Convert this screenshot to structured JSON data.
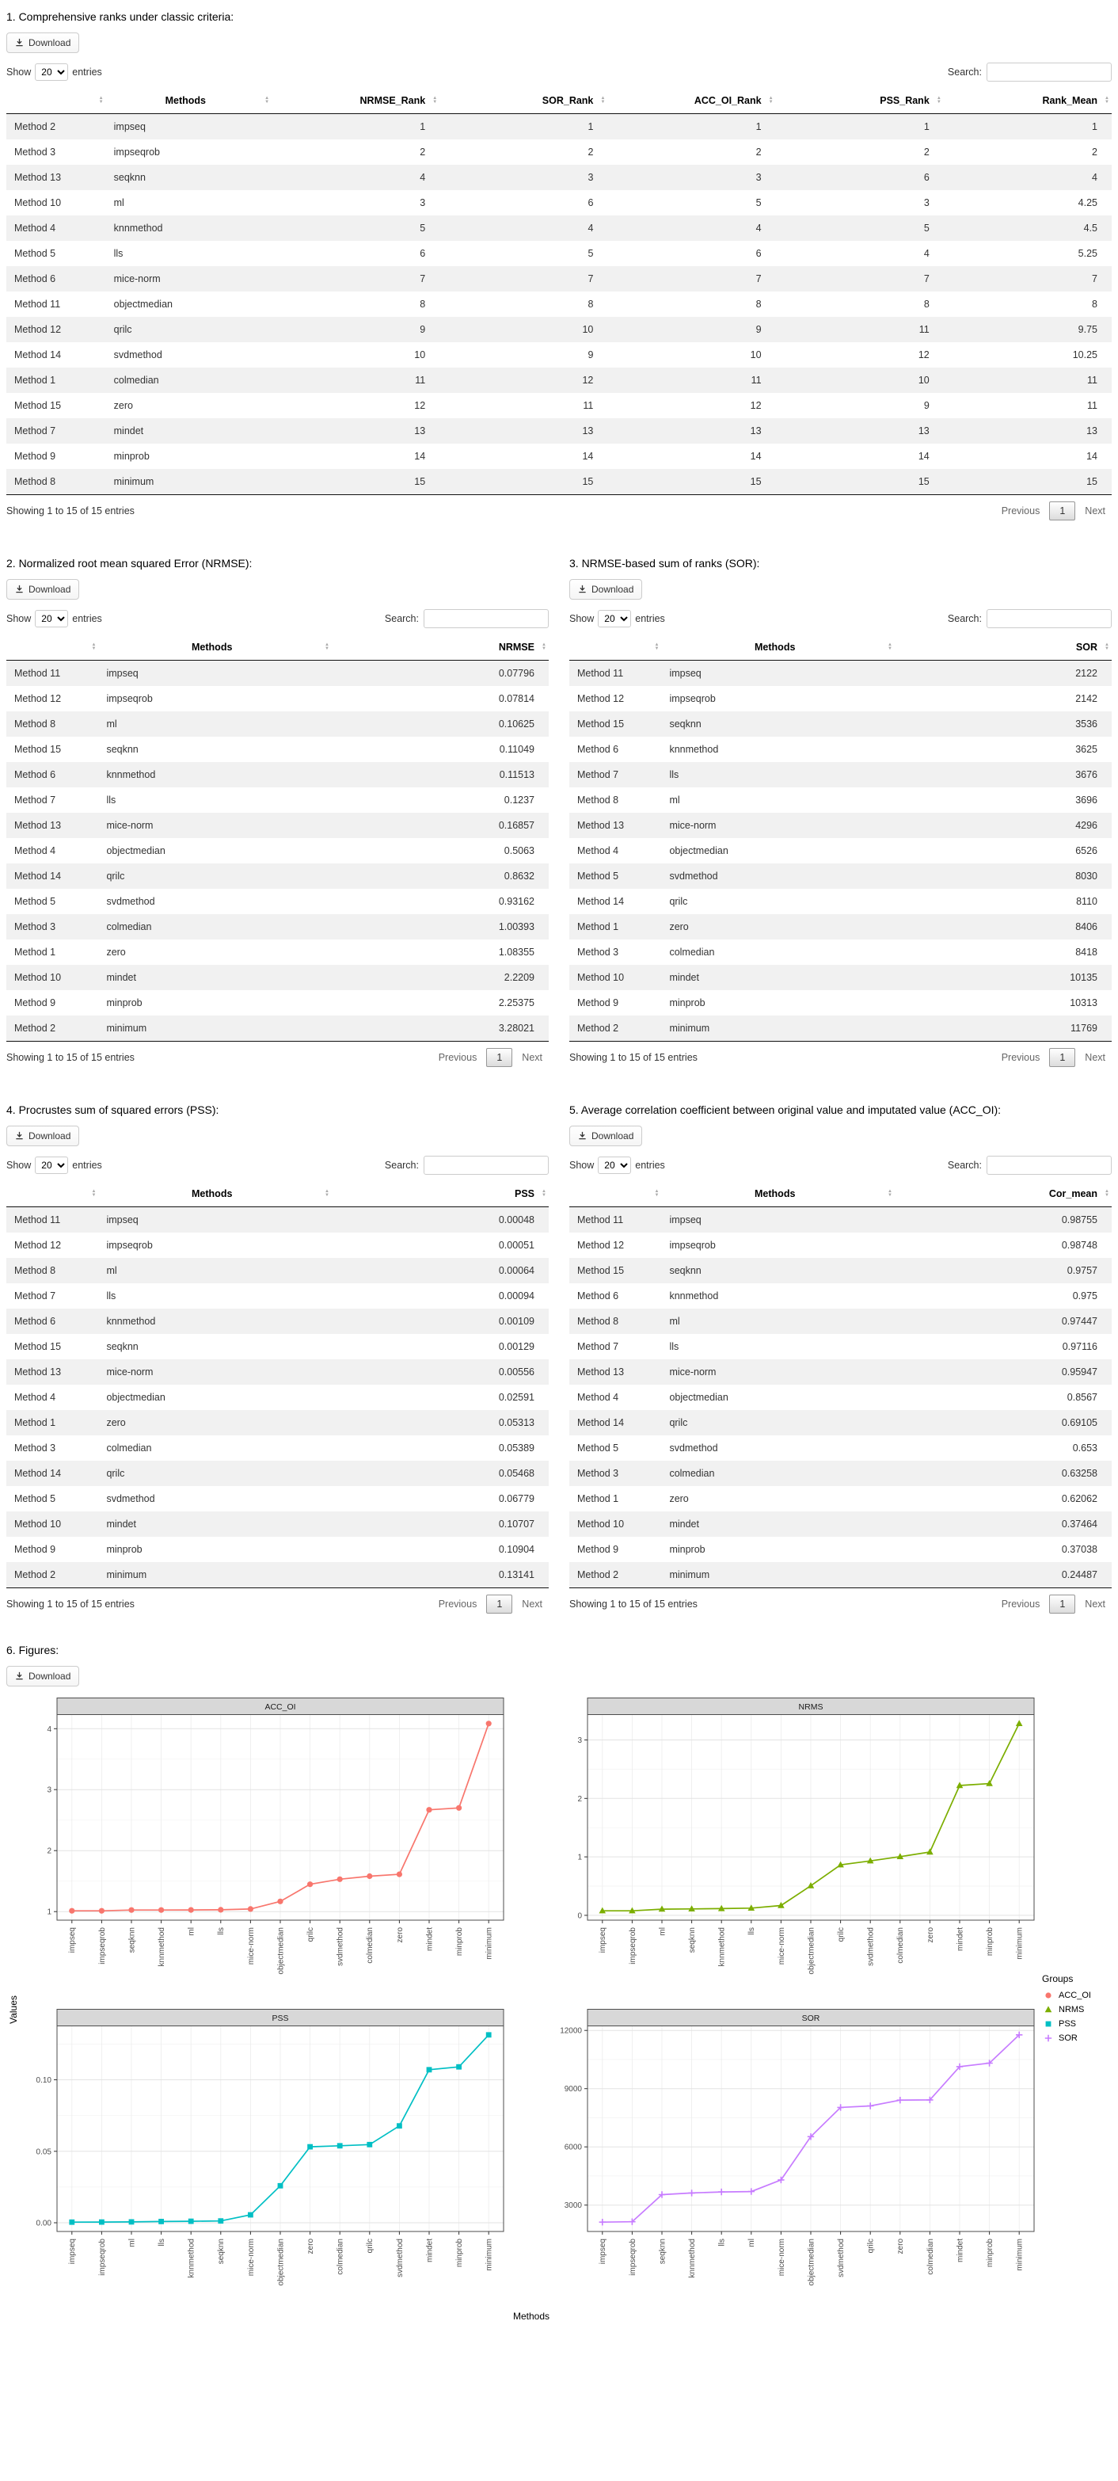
{
  "ui": {
    "download": "Download",
    "show": "Show",
    "page_size": "20",
    "entries": "entries",
    "search": "Search:",
    "info": "Showing 1 to 15 of 15 entries",
    "previous": "Previous",
    "page": "1",
    "next": "Next"
  },
  "tables": {
    "t1": {
      "title": "1. Comprehensive ranks under classic criteria:",
      "headers": [
        "",
        "Methods",
        "NRMSE_Rank",
        "SOR_Rank",
        "ACC_OI_Rank",
        "PSS_Rank",
        "Rank_Mean"
      ],
      "rows": [
        [
          "Method 2",
          "impseq",
          "1",
          "1",
          "1",
          "1",
          "1"
        ],
        [
          "Method 3",
          "impseqrob",
          "2",
          "2",
          "2",
          "2",
          "2"
        ],
        [
          "Method 13",
          "seqknn",
          "4",
          "3",
          "3",
          "6",
          "4"
        ],
        [
          "Method 10",
          "ml",
          "3",
          "6",
          "5",
          "3",
          "4.25"
        ],
        [
          "Method 4",
          "knnmethod",
          "5",
          "4",
          "4",
          "5",
          "4.5"
        ],
        [
          "Method 5",
          "lls",
          "6",
          "5",
          "6",
          "4",
          "5.25"
        ],
        [
          "Method 6",
          "mice-norm",
          "7",
          "7",
          "7",
          "7",
          "7"
        ],
        [
          "Method 11",
          "objectmedian",
          "8",
          "8",
          "8",
          "8",
          "8"
        ],
        [
          "Method 12",
          "qrilc",
          "9",
          "10",
          "9",
          "11",
          "9.75"
        ],
        [
          "Method 14",
          "svdmethod",
          "10",
          "9",
          "10",
          "12",
          "10.25"
        ],
        [
          "Method 1",
          "colmedian",
          "11",
          "12",
          "11",
          "10",
          "11"
        ],
        [
          "Method 15",
          "zero",
          "12",
          "11",
          "12",
          "9",
          "11"
        ],
        [
          "Method 7",
          "mindet",
          "13",
          "13",
          "13",
          "13",
          "13"
        ],
        [
          "Method 9",
          "minprob",
          "14",
          "14",
          "14",
          "14",
          "14"
        ],
        [
          "Method 8",
          "minimum",
          "15",
          "15",
          "15",
          "15",
          "15"
        ]
      ]
    },
    "t2": {
      "title": "2. Normalized root mean squared Error (NRMSE):",
      "headers": [
        "",
        "Methods",
        "NRMSE"
      ],
      "rows": [
        [
          "Method 11",
          "impseq",
          "0.07796"
        ],
        [
          "Method 12",
          "impseqrob",
          "0.07814"
        ],
        [
          "Method 8",
          "ml",
          "0.10625"
        ],
        [
          "Method 15",
          "seqknn",
          "0.11049"
        ],
        [
          "Method 6",
          "knnmethod",
          "0.11513"
        ],
        [
          "Method 7",
          "lls",
          "0.1237"
        ],
        [
          "Method 13",
          "mice-norm",
          "0.16857"
        ],
        [
          "Method 4",
          "objectmedian",
          "0.5063"
        ],
        [
          "Method 14",
          "qrilc",
          "0.8632"
        ],
        [
          "Method 5",
          "svdmethod",
          "0.93162"
        ],
        [
          "Method 3",
          "colmedian",
          "1.00393"
        ],
        [
          "Method 1",
          "zero",
          "1.08355"
        ],
        [
          "Method 10",
          "mindet",
          "2.2209"
        ],
        [
          "Method 9",
          "minprob",
          "2.25375"
        ],
        [
          "Method 2",
          "minimum",
          "3.28021"
        ]
      ]
    },
    "t3": {
      "title": "3. NRMSE-based sum of ranks (SOR):",
      "headers": [
        "",
        "Methods",
        "SOR"
      ],
      "rows": [
        [
          "Method 11",
          "impseq",
          "2122"
        ],
        [
          "Method 12",
          "impseqrob",
          "2142"
        ],
        [
          "Method 15",
          "seqknn",
          "3536"
        ],
        [
          "Method 6",
          "knnmethod",
          "3625"
        ],
        [
          "Method 7",
          "lls",
          "3676"
        ],
        [
          "Method 8",
          "ml",
          "3696"
        ],
        [
          "Method 13",
          "mice-norm",
          "4296"
        ],
        [
          "Method 4",
          "objectmedian",
          "6526"
        ],
        [
          "Method 5",
          "svdmethod",
          "8030"
        ],
        [
          "Method 14",
          "qrilc",
          "8110"
        ],
        [
          "Method 1",
          "zero",
          "8406"
        ],
        [
          "Method 3",
          "colmedian",
          "8418"
        ],
        [
          "Method 10",
          "mindet",
          "10135"
        ],
        [
          "Method 9",
          "minprob",
          "10313"
        ],
        [
          "Method 2",
          "minimum",
          "11769"
        ]
      ]
    },
    "t4": {
      "title": "4. Procrustes sum of squared errors (PSS):",
      "headers": [
        "",
        "Methods",
        "PSS"
      ],
      "rows": [
        [
          "Method 11",
          "impseq",
          "0.00048"
        ],
        [
          "Method 12",
          "impseqrob",
          "0.00051"
        ],
        [
          "Method 8",
          "ml",
          "0.00064"
        ],
        [
          "Method 7",
          "lls",
          "0.00094"
        ],
        [
          "Method 6",
          "knnmethod",
          "0.00109"
        ],
        [
          "Method 15",
          "seqknn",
          "0.00129"
        ],
        [
          "Method 13",
          "mice-norm",
          "0.00556"
        ],
        [
          "Method 4",
          "objectmedian",
          "0.02591"
        ],
        [
          "Method 1",
          "zero",
          "0.05313"
        ],
        [
          "Method 3",
          "colmedian",
          "0.05389"
        ],
        [
          "Method 14",
          "qrilc",
          "0.05468"
        ],
        [
          "Method 5",
          "svdmethod",
          "0.06779"
        ],
        [
          "Method 10",
          "mindet",
          "0.10707"
        ],
        [
          "Method 9",
          "minprob",
          "0.10904"
        ],
        [
          "Method 2",
          "minimum",
          "0.13141"
        ]
      ]
    },
    "t5": {
      "title": "5. Average correlation coefficient between original value and imputated value (ACC_OI):",
      "headers": [
        "",
        "Methods",
        "Cor_mean"
      ],
      "rows": [
        [
          "Method 11",
          "impseq",
          "0.98755"
        ],
        [
          "Method 12",
          "impseqrob",
          "0.98748"
        ],
        [
          "Method 15",
          "seqknn",
          "0.9757"
        ],
        [
          "Method 6",
          "knnmethod",
          "0.975"
        ],
        [
          "Method 8",
          "ml",
          "0.97447"
        ],
        [
          "Method 7",
          "lls",
          "0.97116"
        ],
        [
          "Method 13",
          "mice-norm",
          "0.95947"
        ],
        [
          "Method 4",
          "objectmedian",
          "0.8567"
        ],
        [
          "Method 14",
          "qrilc",
          "0.69105"
        ],
        [
          "Method 5",
          "svdmethod",
          "0.653"
        ],
        [
          "Method 3",
          "colmedian",
          "0.63258"
        ],
        [
          "Method 1",
          "zero",
          "0.62062"
        ],
        [
          "Method 10",
          "mindet",
          "0.37464"
        ],
        [
          "Method 9",
          "minprob",
          "0.37038"
        ],
        [
          "Method 2",
          "minimum",
          "0.24487"
        ]
      ]
    }
  },
  "figures": {
    "title": "6. Figures:",
    "xlabel": "Methods",
    "ylabel": "Values",
    "legend": {
      "title": "Groups",
      "entries": [
        {
          "label": "ACC_OI",
          "color": "#F8766D",
          "shape": "circle"
        },
        {
          "label": "NRMS",
          "color": "#7CAE00",
          "shape": "triangle"
        },
        {
          "label": "PSS",
          "color": "#00BFC4",
          "shape": "square"
        },
        {
          "label": "SOR",
          "color": "#C77CFF",
          "shape": "plus"
        }
      ]
    }
  },
  "chart_data": [
    {
      "type": "line",
      "title": "ACC_OI",
      "color": "#F8766D",
      "shape": "circle",
      "categories": [
        "impseq",
        "impseqrob",
        "seqknn",
        "knnmethod",
        "ml",
        "lls",
        "mice-norm",
        "objectmedian",
        "qrilc",
        "svdmethod",
        "colmedian",
        "zero",
        "mindet",
        "minprob",
        "minimum"
      ],
      "values": [
        1.0126,
        1.0127,
        1.0249,
        1.0256,
        1.0262,
        1.0297,
        1.0422,
        1.1673,
        1.4471,
        1.5314,
        1.5808,
        1.6113,
        2.6692,
        2.6999,
        4.0838
      ],
      "ytick_values": [
        1,
        2,
        3,
        4
      ],
      "ytick_labels": [
        "1",
        "2",
        "3",
        "4"
      ]
    },
    {
      "type": "line",
      "title": "NRMS",
      "color": "#7CAE00",
      "shape": "triangle",
      "categories": [
        "impseq",
        "impseqrob",
        "ml",
        "seqknn",
        "knnmethod",
        "lls",
        "mice-norm",
        "objectmedian",
        "qrilc",
        "svdmethod",
        "colmedian",
        "zero",
        "mindet",
        "minprob",
        "minimum"
      ],
      "values": [
        0.07796,
        0.07814,
        0.10625,
        0.11049,
        0.11513,
        0.1237,
        0.16857,
        0.5063,
        0.8632,
        0.93162,
        1.00393,
        1.08355,
        2.2209,
        2.25375,
        3.28021
      ],
      "ytick_values": [
        0,
        1,
        2,
        3
      ],
      "ytick_labels": [
        "0",
        "1",
        "2",
        "3"
      ]
    },
    {
      "type": "line",
      "title": "PSS",
      "color": "#00BFC4",
      "shape": "square",
      "categories": [
        "impseq",
        "impseqrob",
        "ml",
        "lls",
        "knnmethod",
        "seqknn",
        "mice-norm",
        "objectmedian",
        "zero",
        "colmedian",
        "qrilc",
        "svdmethod",
        "mindet",
        "minprob",
        "minimum"
      ],
      "values": [
        0.00048,
        0.00051,
        0.00064,
        0.00094,
        0.00109,
        0.00129,
        0.00556,
        0.02591,
        0.05313,
        0.05389,
        0.05468,
        0.06779,
        0.10707,
        0.10904,
        0.13141
      ],
      "ytick_values": [
        0,
        0.05,
        0.1
      ],
      "ytick_labels": [
        "0.00",
        "0.05",
        "0.10"
      ]
    },
    {
      "type": "line",
      "title": "SOR",
      "color": "#C77CFF",
      "shape": "plus",
      "categories": [
        "impseq",
        "impseqrob",
        "seqknn",
        "knnmethod",
        "lls",
        "ml",
        "mice-norm",
        "objectmedian",
        "svdmethod",
        "qrilc",
        "zero",
        "colmedian",
        "mindet",
        "minprob",
        "minimum"
      ],
      "values": [
        2122,
        2142,
        3536,
        3625,
        3676,
        3696,
        4296,
        6526,
        8030,
        8110,
        8406,
        8418,
        10135,
        10313,
        11769
      ],
      "ytick_values": [
        3000,
        6000,
        9000,
        12000
      ],
      "ytick_labels": [
        "3000",
        "6000",
        "9000",
        "12000"
      ]
    }
  ]
}
